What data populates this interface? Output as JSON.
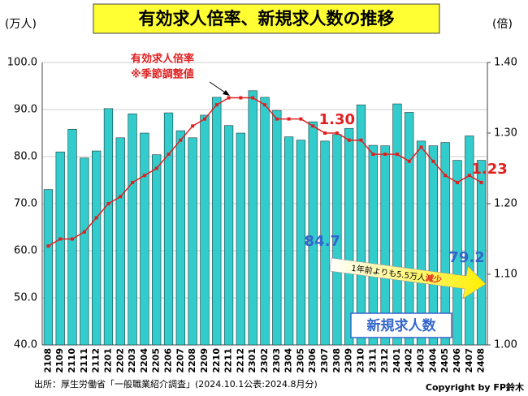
{
  "chart_data": {
    "type": "combo",
    "title": "有効求人倍率、新規求人数の推移",
    "ylabel": "(万人)",
    "y2label": "(倍)",
    "categories": [
      "2108",
      "2109",
      "2110",
      "2111",
      "2112",
      "2201",
      "2202",
      "2203",
      "2204",
      "2205",
      "2206",
      "2207",
      "2208",
      "2209",
      "2210",
      "2211",
      "2212",
      "2301",
      "2302",
      "2303",
      "2304",
      "2305",
      "2306",
      "2307",
      "2308",
      "2309",
      "2310",
      "2311",
      "2312",
      "2401",
      "2402",
      "2403",
      "2404",
      "2405",
      "2406",
      "2407",
      "2408"
    ],
    "series": [
      {
        "name": "新規求人数",
        "type": "bar",
        "color": "#33cccc",
        "values": [
          73.0,
          81.0,
          85.8,
          79.7,
          81.2,
          90.2,
          84.0,
          89.1,
          85.0,
          80.4,
          89.3,
          85.5,
          84.0,
          88.8,
          92.6,
          86.6,
          85.0,
          94.0,
          92.6,
          89.8,
          84.2,
          83.5,
          87.4,
          83.3,
          84.7,
          86.0,
          91.0,
          82.4,
          82.3,
          91.2,
          89.4,
          83.3,
          82.3,
          83.0,
          79.2,
          84.4,
          79.2
        ],
        "value_labels": [
          null,
          null,
          null,
          null,
          null,
          null,
          null,
          null,
          null,
          null,
          null,
          null,
          null,
          null,
          null,
          null,
          null,
          null,
          null,
          null,
          null,
          null,
          null,
          null,
          "84.7",
          null,
          null,
          null,
          null,
          null,
          null,
          null,
          null,
          null,
          null,
          null,
          "79.2"
        ]
      },
      {
        "name": "有効求人倍率",
        "type": "line",
        "axis": "y2",
        "color": "#e02020",
        "values": [
          1.14,
          1.15,
          1.15,
          1.16,
          1.18,
          1.2,
          1.21,
          1.23,
          1.24,
          1.25,
          1.27,
          1.29,
          1.31,
          1.32,
          1.34,
          1.35,
          1.35,
          1.35,
          1.34,
          1.32,
          1.32,
          1.32,
          1.31,
          1.3,
          1.3,
          1.29,
          1.29,
          1.27,
          1.27,
          1.27,
          1.26,
          1.28,
          1.26,
          1.24,
          1.23,
          1.24,
          1.23
        ],
        "value_labels": [
          null,
          null,
          null,
          null,
          null,
          null,
          null,
          null,
          null,
          null,
          null,
          null,
          null,
          null,
          null,
          null,
          null,
          null,
          null,
          null,
          null,
          null,
          null,
          null,
          "1.30",
          null,
          null,
          null,
          null,
          null,
          null,
          null,
          null,
          null,
          null,
          null,
          "1.23"
        ]
      }
    ],
    "ylim": [
      40,
      100
    ],
    "yticks": [
      {
        "value": 40,
        "label": "40.0"
      },
      {
        "value": 50,
        "label": "50.0"
      },
      {
        "value": 60,
        "label": "60.0"
      },
      {
        "value": 70,
        "label": "70.0"
      },
      {
        "value": 80,
        "label": "80.0"
      },
      {
        "value": 90,
        "label": "90.0"
      },
      {
        "value": 100,
        "label": "100.0"
      }
    ],
    "y2lim": [
      1.0,
      1.4
    ],
    "y2ticks": [
      {
        "value": 1.0,
        "label": "1.00"
      },
      {
        "value": 1.1,
        "label": "1.10"
      },
      {
        "value": 1.2,
        "label": "1.20"
      },
      {
        "value": 1.3,
        "label": "1.30"
      },
      {
        "value": 1.4,
        "label": "1.40"
      }
    ],
    "grid": true,
    "annotations": {
      "line_note": "※季節調整値",
      "arrow_text": "1年前よりも5.5万人",
      "arrow_text_emphasis": "減少"
    },
    "source": "出所：厚生労働省「一般職業紹介調査」(2024.10.1公表:2024.8月分)",
    "copyright": "Copyright by FP鈴木"
  }
}
